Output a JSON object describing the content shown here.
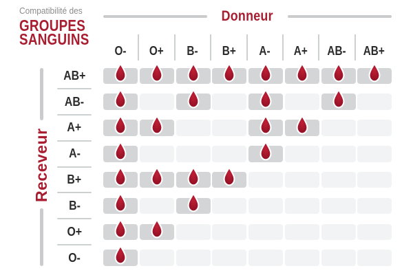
{
  "title": {
    "small": "Compatibilité des",
    "line1": "GROUPES",
    "line2": "SANGUINS"
  },
  "donor_header": "Donneur",
  "receiver_header": "Receveur",
  "colors": {
    "bg": "#ffffff",
    "red": "#a81e30",
    "title_gray": "#8b8b8b",
    "label_dark": "#2b2b2b",
    "rule_gray": "#c9cbcc",
    "separator": "#cdd0d1",
    "cell_filled": "#d3d5d6",
    "cell_empty": "#f2f3f4",
    "drop_center": "#bf2036",
    "drop_edge": "#8e0e23"
  },
  "icons": {
    "compatible_marker": "blood-drop-icon"
  },
  "chart_data": {
    "type": "heatmap",
    "title": "Compatibilité des GROUPES SANGUINS",
    "columns_axis_label": "Donneur",
    "rows_axis_label": "Receveur",
    "columns": [
      "O-",
      "O+",
      "B-",
      "B+",
      "A-",
      "A+",
      "AB-",
      "AB+"
    ],
    "rows": [
      "AB+",
      "AB-",
      "A+",
      "A-",
      "B+",
      "B-",
      "O+",
      "O-"
    ],
    "matrix": [
      [
        1,
        1,
        1,
        1,
        1,
        1,
        1,
        1
      ],
      [
        1,
        0,
        1,
        0,
        1,
        0,
        1,
        0
      ],
      [
        1,
        1,
        0,
        0,
        1,
        1,
        0,
        0
      ],
      [
        1,
        0,
        0,
        0,
        1,
        0,
        0,
        0
      ],
      [
        1,
        1,
        1,
        1,
        0,
        0,
        0,
        0
      ],
      [
        1,
        0,
        1,
        0,
        0,
        0,
        0,
        0
      ],
      [
        1,
        1,
        0,
        0,
        0,
        0,
        0,
        0
      ],
      [
        1,
        0,
        0,
        0,
        0,
        0,
        0,
        0
      ]
    ],
    "cell_encoding": "1 = compatible (goutte de sang affichée), 0 = non compatible (case vide)"
  }
}
